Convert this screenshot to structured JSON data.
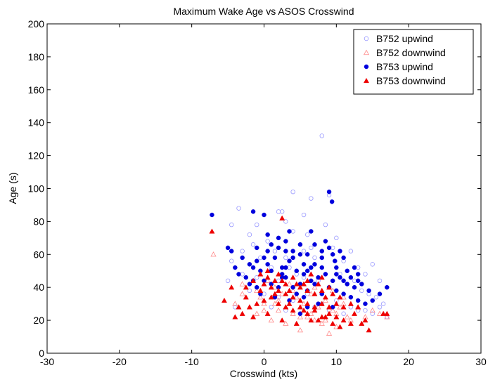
{
  "chart_data": {
    "type": "scatter",
    "title": "Maximum Wake Age vs ASOS Crosswind",
    "xlabel": "Crosswind (kts)",
    "ylabel": "Age (s)",
    "xlim": [
      -30,
      30
    ],
    "ylim": [
      0,
      200
    ],
    "xticks": [
      -30,
      -20,
      -10,
      0,
      10,
      20,
      30
    ],
    "yticks": [
      0,
      20,
      40,
      60,
      80,
      100,
      120,
      140,
      160,
      180,
      200
    ],
    "grid": false,
    "legend_position": "top-right",
    "series": [
      {
        "name": "B752 upwind",
        "marker": "open-circle",
        "color": "#9999ff",
        "points": [
          [
            -4.5,
            78
          ],
          [
            -3.5,
            88
          ],
          [
            -2,
            72
          ],
          [
            0,
            84
          ],
          [
            2,
            86
          ],
          [
            2.5,
            86
          ],
          [
            4,
            98
          ],
          [
            6.5,
            94
          ],
          [
            8,
            132
          ],
          [
            9,
            96
          ],
          [
            -4.5,
            56
          ],
          [
            -3,
            62
          ],
          [
            -1.5,
            66
          ],
          [
            -0.5,
            58
          ],
          [
            0.5,
            68
          ],
          [
            1.5,
            62
          ],
          [
            3,
            58
          ],
          [
            4,
            74
          ],
          [
            5,
            66
          ],
          [
            5.5,
            62
          ],
          [
            6.5,
            64
          ],
          [
            7,
            58
          ],
          [
            8.5,
            78
          ],
          [
            9.5,
            64
          ],
          [
            11,
            56
          ],
          [
            12,
            62
          ],
          [
            13,
            52
          ],
          [
            14,
            48
          ],
          [
            15,
            54
          ],
          [
            16,
            44
          ],
          [
            -5,
            44
          ],
          [
            -3,
            48
          ],
          [
            -1,
            46
          ],
          [
            1,
            52
          ],
          [
            2,
            44
          ],
          [
            3.5,
            52
          ],
          [
            4.5,
            48
          ],
          [
            5.5,
            46
          ],
          [
            6.5,
            52
          ],
          [
            7.5,
            44
          ],
          [
            8.5,
            48
          ],
          [
            9.5,
            44
          ],
          [
            10.5,
            48
          ],
          [
            11.5,
            42
          ],
          [
            12.5,
            44
          ],
          [
            13.5,
            38
          ],
          [
            14.5,
            36
          ],
          [
            15.5,
            34
          ],
          [
            16.5,
            30
          ],
          [
            -2,
            38
          ],
          [
            0,
            36
          ],
          [
            2,
            34
          ],
          [
            4,
            32
          ],
          [
            6,
            36
          ],
          [
            8,
            30
          ],
          [
            10,
            32
          ],
          [
            12,
            28
          ],
          [
            14,
            26
          ],
          [
            16,
            28
          ],
          [
            -4,
            28
          ],
          [
            1,
            28
          ],
          [
            3,
            26
          ],
          [
            5,
            24
          ],
          [
            7,
            28
          ],
          [
            9,
            26
          ],
          [
            11,
            24
          ],
          [
            13,
            26
          ],
          [
            15,
            24
          ],
          [
            17,
            22
          ],
          [
            6,
            72
          ],
          [
            10,
            70
          ],
          [
            3,
            80
          ],
          [
            -1,
            78
          ],
          [
            5.5,
            84
          ]
        ]
      },
      {
        "name": "B752 downwind",
        "marker": "open-triangle",
        "color": "#ff8888",
        "points": [
          [
            -7,
            60
          ],
          [
            -3,
            42
          ],
          [
            -1,
            38
          ],
          [
            0.5,
            44
          ],
          [
            1.5,
            40
          ],
          [
            2.5,
            36
          ],
          [
            3.5,
            42
          ],
          [
            4.5,
            34
          ],
          [
            5.5,
            30
          ],
          [
            6.5,
            36
          ],
          [
            7.5,
            28
          ],
          [
            8.5,
            32
          ],
          [
            9.5,
            26
          ],
          [
            10.5,
            28
          ],
          [
            11.5,
            22
          ],
          [
            -4,
            30
          ],
          [
            -2,
            28
          ],
          [
            0,
            30
          ],
          [
            2,
            26
          ],
          [
            4,
            24
          ],
          [
            6,
            22
          ],
          [
            8,
            18
          ],
          [
            9,
            12
          ],
          [
            10,
            16
          ],
          [
            3,
            18
          ],
          [
            5,
            14
          ],
          [
            1,
            20
          ],
          [
            -1,
            24
          ],
          [
            12,
            20
          ],
          [
            14,
            22
          ],
          [
            16,
            24
          ],
          [
            17,
            22
          ],
          [
            7,
            40
          ],
          [
            9.5,
            38
          ],
          [
            11,
            34
          ],
          [
            13,
            28
          ],
          [
            15,
            26
          ],
          [
            4,
            38
          ],
          [
            2,
            32
          ],
          [
            0,
            26
          ],
          [
            6.5,
            24
          ],
          [
            8.5,
            20
          ],
          [
            10,
            24
          ],
          [
            -3,
            36
          ],
          [
            -0.5,
            34
          ],
          [
            1.5,
            30
          ],
          [
            3,
            28
          ],
          [
            5,
            22
          ],
          [
            7,
            20
          ],
          [
            11,
            30
          ]
        ]
      },
      {
        "name": "B753 upwind",
        "marker": "filled-circle",
        "color": "#0000dd",
        "points": [
          [
            -7.2,
            84
          ],
          [
            -1.5,
            86
          ],
          [
            0,
            84
          ],
          [
            3.5,
            74
          ],
          [
            6.5,
            74
          ],
          [
            9,
            98
          ],
          [
            9.4,
            92
          ],
          [
            10.5,
            62
          ],
          [
            -5,
            64
          ],
          [
            -4.5,
            62
          ],
          [
            -3,
            58
          ],
          [
            -2,
            54
          ],
          [
            -1,
            64
          ],
          [
            0.5,
            72
          ],
          [
            1,
            66
          ],
          [
            2,
            64
          ],
          [
            3,
            68
          ],
          [
            4,
            62
          ],
          [
            5,
            60
          ],
          [
            5.5,
            54
          ],
          [
            6,
            60
          ],
          [
            7,
            66
          ],
          [
            8,
            58
          ],
          [
            8.5,
            68
          ],
          [
            9,
            64
          ],
          [
            9.5,
            60
          ],
          [
            10,
            52
          ],
          [
            11,
            58
          ],
          [
            11.5,
            50
          ],
          [
            12.5,
            52
          ],
          [
            13,
            48
          ],
          [
            -4,
            52
          ],
          [
            -3.5,
            48
          ],
          [
            -2.5,
            46
          ],
          [
            -1.5,
            52
          ],
          [
            -0.5,
            50
          ],
          [
            0.5,
            54
          ],
          [
            1.5,
            58
          ],
          [
            2.5,
            52
          ],
          [
            3.5,
            56
          ],
          [
            4.5,
            50
          ],
          [
            5.5,
            48
          ],
          [
            6.5,
            52
          ],
          [
            7.5,
            46
          ],
          [
            8.5,
            48
          ],
          [
            9.5,
            44
          ],
          [
            10.5,
            46
          ],
          [
            11.5,
            42
          ],
          [
            12.5,
            40
          ],
          [
            13.5,
            42
          ],
          [
            14.5,
            38
          ],
          [
            16,
            36
          ],
          [
            17,
            40
          ],
          [
            -2,
            42
          ],
          [
            -1,
            40
          ],
          [
            0,
            44
          ],
          [
            1,
            42
          ],
          [
            2,
            40
          ],
          [
            3,
            46
          ],
          [
            4,
            40
          ],
          [
            5,
            42
          ],
          [
            6,
            38
          ],
          [
            7,
            42
          ],
          [
            8,
            36
          ],
          [
            9,
            40
          ],
          [
            10,
            38
          ],
          [
            11,
            36
          ],
          [
            12,
            34
          ],
          [
            13,
            32
          ],
          [
            14,
            30
          ],
          [
            15,
            32
          ],
          [
            -0.5,
            36
          ],
          [
            1.5,
            34
          ],
          [
            3.5,
            32
          ],
          [
            5.5,
            34
          ],
          [
            7.5,
            30
          ],
          [
            9.5,
            28
          ],
          [
            4.5,
            36
          ],
          [
            6.5,
            44
          ],
          [
            2.5,
            48
          ],
          [
            0,
            58
          ],
          [
            1,
            50
          ],
          [
            3,
            52
          ],
          [
            4,
            58
          ],
          [
            6,
            50
          ],
          [
            7,
            54
          ],
          [
            8,
            52
          ],
          [
            10,
            48
          ],
          [
            11,
            44
          ],
          [
            12,
            46
          ],
          [
            13,
            44
          ],
          [
            -1,
            56
          ],
          [
            0.5,
            62
          ],
          [
            2,
            70
          ],
          [
            3,
            62
          ],
          [
            5,
            66
          ],
          [
            8,
            62
          ],
          [
            9.8,
            56
          ],
          [
            6,
            28
          ],
          [
            5,
            24
          ],
          [
            2.5,
            46
          ],
          [
            -1.5,
            44
          ]
        ]
      },
      {
        "name": "B753 downwind",
        "marker": "filled-triangle",
        "color": "#ee0000",
        "points": [
          [
            -7.2,
            74
          ],
          [
            2.5,
            82
          ],
          [
            -5.5,
            32
          ],
          [
            -4.5,
            40
          ],
          [
            -3.5,
            28
          ],
          [
            -2.5,
            34
          ],
          [
            -1.5,
            44
          ],
          [
            -0.5,
            48
          ],
          [
            0.5,
            50
          ],
          [
            1.5,
            44
          ],
          [
            2,
            48
          ],
          [
            3,
            42
          ],
          [
            3.5,
            38
          ],
          [
            4,
            46
          ],
          [
            5,
            40
          ],
          [
            5.5,
            42
          ],
          [
            6,
            38
          ],
          [
            6.5,
            48
          ],
          [
            7,
            36
          ],
          [
            7.5,
            42
          ],
          [
            8,
            38
          ],
          [
            8.5,
            34
          ],
          [
            9,
            40
          ],
          [
            9.5,
            36
          ],
          [
            10,
            30
          ],
          [
            10.5,
            34
          ],
          [
            11,
            28
          ],
          [
            12,
            30
          ],
          [
            12.5,
            24
          ],
          [
            13,
            28
          ],
          [
            13.5,
            18
          ],
          [
            14,
            20
          ],
          [
            14.5,
            14
          ],
          [
            16.5,
            24
          ],
          [
            17,
            24
          ],
          [
            -4,
            22
          ],
          [
            -3,
            24
          ],
          [
            -2,
            28
          ],
          [
            -1,
            30
          ],
          [
            0,
            32
          ],
          [
            1,
            34
          ],
          [
            2,
            30
          ],
          [
            3,
            28
          ],
          [
            4,
            26
          ],
          [
            5,
            28
          ],
          [
            6,
            24
          ],
          [
            7,
            26
          ],
          [
            8,
            22
          ],
          [
            9,
            24
          ],
          [
            10,
            22
          ],
          [
            11,
            20
          ],
          [
            12,
            18
          ],
          [
            -1.5,
            22
          ],
          [
            0.5,
            24
          ],
          [
            2.5,
            20
          ],
          [
            4.5,
            18
          ],
          [
            6.5,
            20
          ],
          [
            7.5,
            20
          ],
          [
            8.5,
            22
          ],
          [
            9.5,
            18
          ],
          [
            10.5,
            16
          ],
          [
            0,
            42
          ],
          [
            1,
            40
          ],
          [
            2,
            38
          ],
          [
            3,
            36
          ],
          [
            4,
            34
          ],
          [
            5,
            32
          ],
          [
            6,
            30
          ],
          [
            7,
            28
          ],
          [
            8,
            30
          ],
          [
            9,
            28
          ],
          [
            -0.5,
            38
          ],
          [
            1.5,
            36
          ],
          [
            3.5,
            30
          ],
          [
            5.5,
            26
          ],
          [
            -2.5,
            40
          ],
          [
            0.5,
            46
          ],
          [
            2.5,
            44
          ],
          [
            4.5,
            42
          ],
          [
            6,
            44
          ],
          [
            8,
            46
          ]
        ]
      }
    ]
  }
}
